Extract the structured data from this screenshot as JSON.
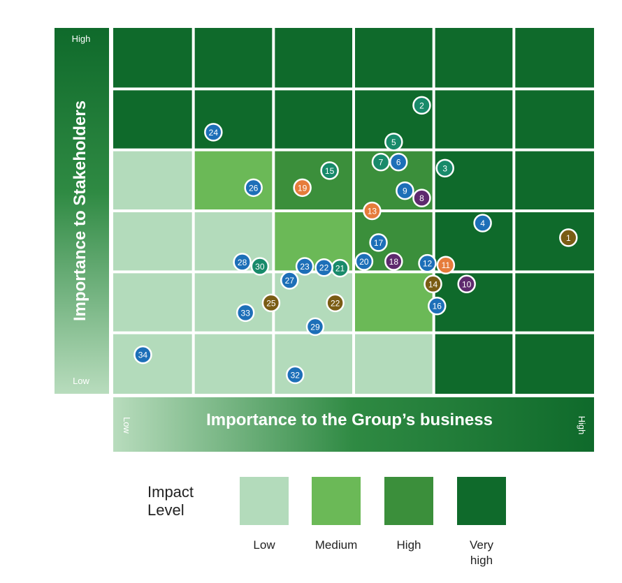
{
  "chart_data": {
    "type": "scatter",
    "xlabel": "Importance to the Group’s business",
    "ylabel": "Importance to Stakeholders",
    "x_tick_low": "Low",
    "x_tick_high": "High",
    "y_tick_low": "Low",
    "y_tick_high": "High",
    "xlim": [
      0,
      6
    ],
    "ylim": [
      0,
      6
    ],
    "grid_impact": [
      [
        "very-high",
        "very-high",
        "very-high",
        "very-high",
        "very-high",
        "very-high"
      ],
      [
        "very-high",
        "very-high",
        "very-high",
        "very-high",
        "very-high",
        "very-high"
      ],
      [
        "low",
        "medium",
        "high",
        "high",
        "very-high",
        "very-high"
      ],
      [
        "low",
        "low",
        "medium",
        "high",
        "very-high",
        "very-high"
      ],
      [
        "low",
        "low",
        "low",
        "medium",
        "very-high",
        "very-high"
      ],
      [
        "low",
        "low",
        "low",
        "low",
        "very-high",
        "very-high"
      ]
    ],
    "impact_colors": {
      "low": "#b3dbbb",
      "medium": "#6bb957",
      "high": "#3b8f3b",
      "very-high": "#0f6a2b"
    },
    "category_colors": {
      "blue": "#1d6fb8",
      "teal": "#188a6a",
      "orange": "#e67c3b",
      "purple": "#5e2a6e",
      "olive": "#7a5c14"
    },
    "points": [
      {
        "label": "1",
        "x": 5.68,
        "y": 2.56,
        "color": "olive"
      },
      {
        "label": "2",
        "x": 3.85,
        "y": 4.73,
        "color": "teal"
      },
      {
        "label": "3",
        "x": 4.14,
        "y": 3.7,
        "color": "teal"
      },
      {
        "label": "4",
        "x": 4.61,
        "y": 2.8,
        "color": "blue"
      },
      {
        "label": "5",
        "x": 3.5,
        "y": 4.13,
        "color": "teal"
      },
      {
        "label": "6",
        "x": 3.56,
        "y": 3.8,
        "color": "blue"
      },
      {
        "label": "7",
        "x": 3.34,
        "y": 3.8,
        "color": "teal"
      },
      {
        "label": "8",
        "x": 3.85,
        "y": 3.21,
        "color": "purple"
      },
      {
        "label": "9",
        "x": 3.64,
        "y": 3.33,
        "color": "blue"
      },
      {
        "label": "10",
        "x": 4.41,
        "y": 1.8,
        "color": "purple"
      },
      {
        "label": "11",
        "x": 4.15,
        "y": 2.11,
        "color": "orange"
      },
      {
        "label": "12",
        "x": 3.92,
        "y": 2.14,
        "color": "blue"
      },
      {
        "label": "13",
        "x": 3.23,
        "y": 3.0,
        "color": "orange"
      },
      {
        "label": "14",
        "x": 3.99,
        "y": 1.8,
        "color": "olive"
      },
      {
        "label": "15",
        "x": 2.7,
        "y": 3.66,
        "color": "teal"
      },
      {
        "label": "16",
        "x": 4.04,
        "y": 1.44,
        "color": "blue"
      },
      {
        "label": "17",
        "x": 3.31,
        "y": 2.48,
        "color": "blue"
      },
      {
        "label": "18",
        "x": 3.5,
        "y": 2.17,
        "color": "purple"
      },
      {
        "label": "19",
        "x": 2.36,
        "y": 3.38,
        "color": "orange"
      },
      {
        "label": "20",
        "x": 3.13,
        "y": 2.17,
        "color": "blue"
      },
      {
        "label": "21",
        "x": 2.83,
        "y": 2.06,
        "color": "teal"
      },
      {
        "label": "22",
        "x": 2.63,
        "y": 2.07,
        "color": "blue"
      },
      {
        "label": "22",
        "x": 2.77,
        "y": 1.49,
        "color": "olive"
      },
      {
        "label": "23",
        "x": 2.39,
        "y": 2.09,
        "color": "blue"
      },
      {
        "label": "24",
        "x": 1.25,
        "y": 4.29,
        "color": "blue"
      },
      {
        "label": "25",
        "x": 1.97,
        "y": 1.49,
        "color": "olive"
      },
      {
        "label": "26",
        "x": 1.75,
        "y": 3.38,
        "color": "blue"
      },
      {
        "label": "27",
        "x": 2.2,
        "y": 1.86,
        "color": "blue"
      },
      {
        "label": "28",
        "x": 1.61,
        "y": 2.16,
        "color": "blue"
      },
      {
        "label": "29",
        "x": 2.52,
        "y": 1.1,
        "color": "blue"
      },
      {
        "label": "30",
        "x": 1.83,
        "y": 2.09,
        "color": "teal"
      },
      {
        "label": "32",
        "x": 2.27,
        "y": 0.31,
        "color": "blue"
      },
      {
        "label": "33",
        "x": 1.65,
        "y": 1.33,
        "color": "blue"
      },
      {
        "label": "34",
        "x": 0.37,
        "y": 0.64,
        "color": "blue"
      }
    ]
  },
  "legend": {
    "title_line1": "Impact",
    "title_line2": "Level",
    "items": [
      {
        "level": "low",
        "label_line1": "Low",
        "label_line2": ""
      },
      {
        "level": "medium",
        "label_line1": "Medium",
        "label_line2": ""
      },
      {
        "level": "high",
        "label_line1": "High",
        "label_line2": ""
      },
      {
        "level": "very-high",
        "label_line1": "Very",
        "label_line2": "high"
      }
    ]
  }
}
